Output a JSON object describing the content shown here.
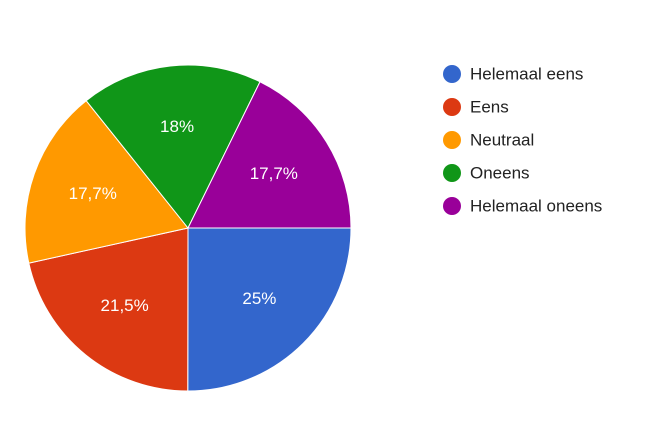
{
  "chart_data": {
    "type": "pie",
    "categories": [
      "Helemaal eens",
      "Eens",
      "Neutraal",
      "Oneens",
      "Helemaal oneens"
    ],
    "values": [
      25,
      21.5,
      17.7,
      18,
      17.7
    ],
    "value_labels": [
      "25%",
      "21,5%",
      "17,7%",
      "18%",
      "17,7%"
    ],
    "colors": [
      "#3366cc",
      "#dc3912",
      "#ff9900",
      "#109618",
      "#990099"
    ],
    "legend": "right"
  }
}
